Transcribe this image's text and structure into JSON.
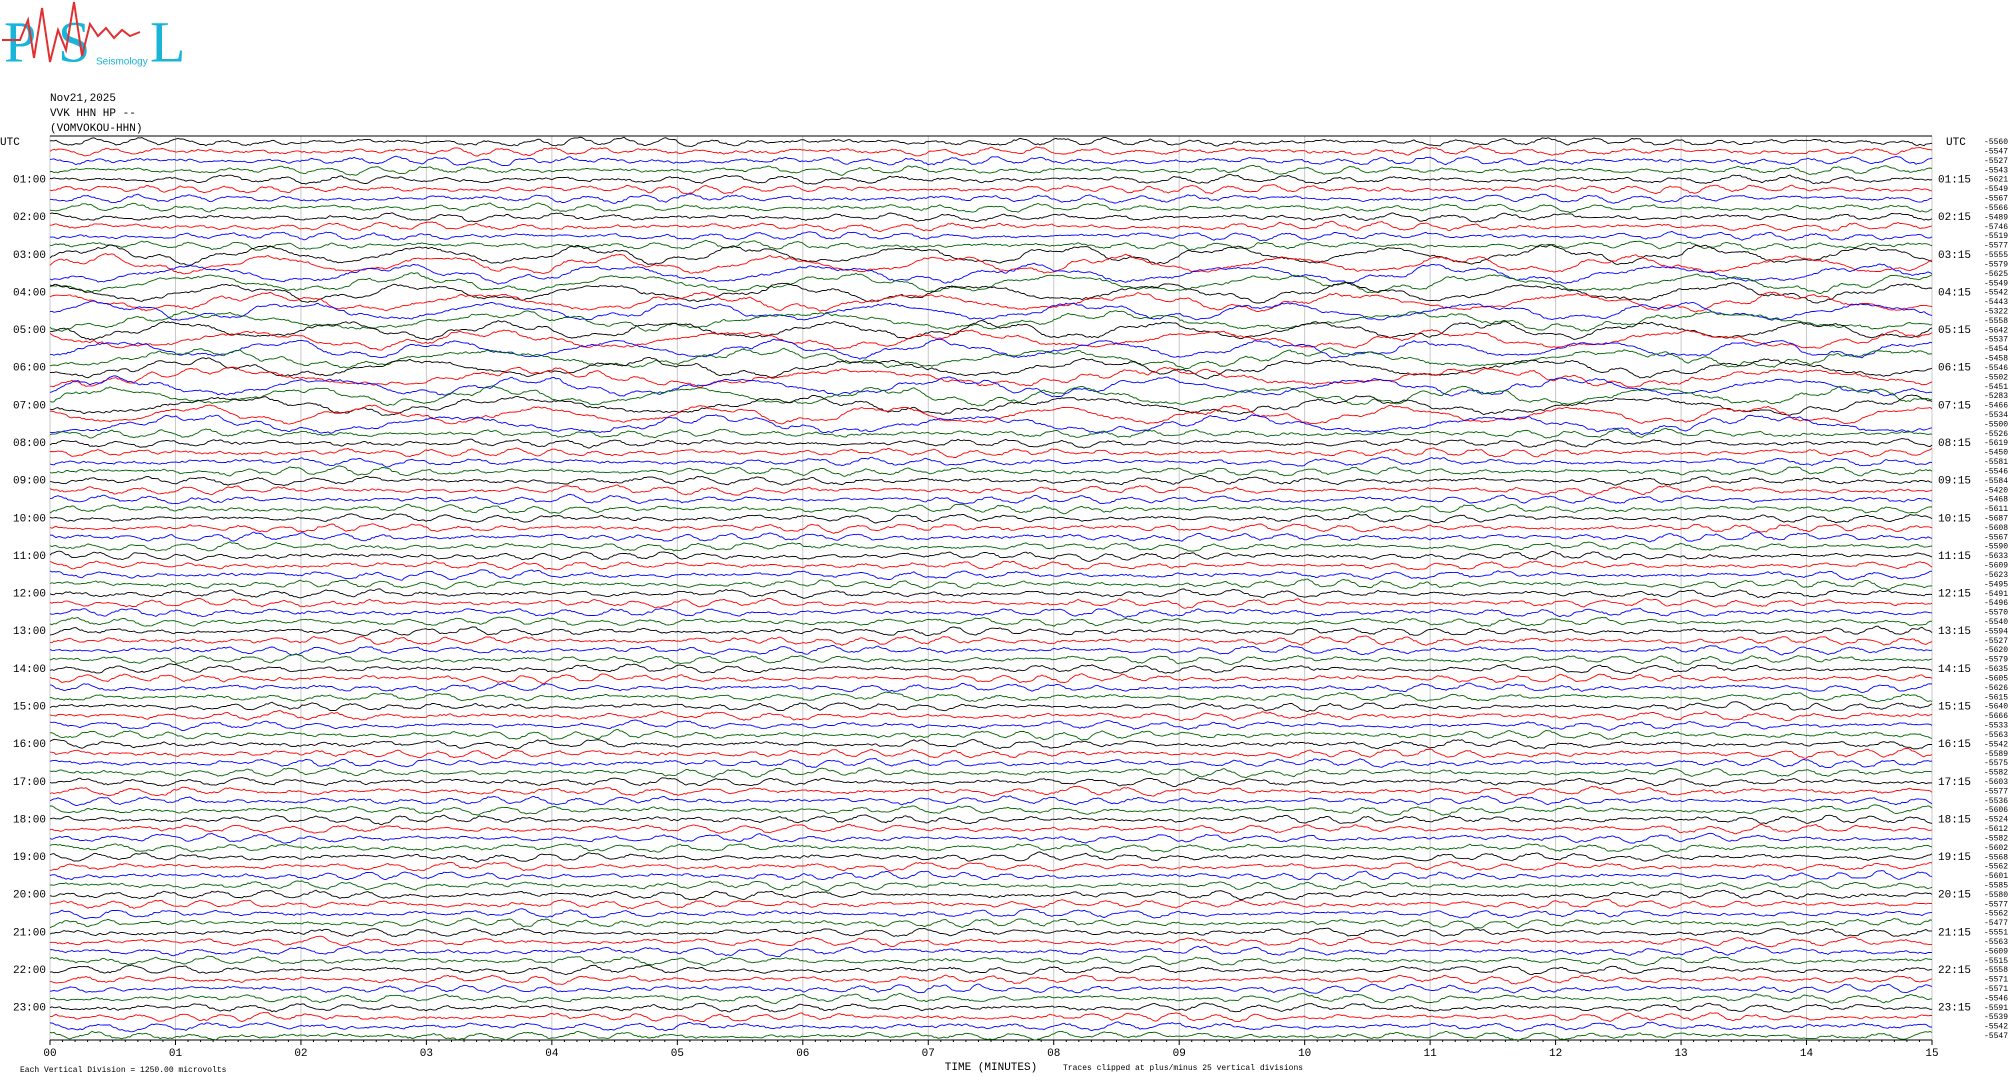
{
  "logo": {
    "letters": [
      "P",
      "S",
      "L"
    ],
    "caption": "Seismology"
  },
  "header": {
    "date": "Nov21,2025",
    "station": "VVK HHN HP --",
    "channel": "(VOMVOKOU-HHN)"
  },
  "plot": {
    "left_label": "UTC",
    "right_label": "UTC",
    "left_times": [
      "01:00",
      "02:00",
      "03:00",
      "04:00",
      "05:00",
      "06:00",
      "07:00",
      "08:00",
      "09:00",
      "10:00",
      "11:00",
      "12:00",
      "13:00",
      "14:00",
      "15:00",
      "16:00",
      "17:00",
      "18:00",
      "19:00",
      "20:00",
      "21:00",
      "22:00",
      "23:00"
    ],
    "right_times": [
      "01:15",
      "02:15",
      "03:15",
      "04:15",
      "05:15",
      "06:15",
      "07:15",
      "08:15",
      "09:15",
      "10:15",
      "11:15",
      "12:15",
      "13:15",
      "14:15",
      "15:15",
      "16:15",
      "17:15",
      "18:15",
      "19:15",
      "20:15",
      "21:15",
      "22:15",
      "23:15"
    ],
    "trace_offsets": [
      "-5560",
      "-5547",
      "-5527",
      "-5543",
      "-5621",
      "-5549",
      "-5567",
      "-5566",
      "-5489",
      "-5746",
      "-5519",
      "-5577",
      "-5555",
      "-5579",
      "-5625",
      "-5549",
      "-5542",
      "-5443",
      "-5322",
      "-5558",
      "-5642",
      "-5537",
      "-5454",
      "-5458",
      "-5546",
      "-5502",
      "-5451",
      "-5283",
      "-5466",
      "-5534",
      "-5500",
      "-5526",
      "-5619",
      "-5450",
      "-5581",
      "-5546",
      "-5584",
      "-5420",
      "-5468",
      "-5611",
      "-5687",
      "-5608",
      "-5567",
      "-5590",
      "-5633",
      "-5609",
      "-5623",
      "-5495",
      "-5491",
      "-5496",
      "-5570",
      "-5540",
      "-5594",
      "-5527",
      "-5620",
      "-5579",
      "-5635",
      "-5605",
      "-5626",
      "-5615",
      "-5640",
      "-5666",
      "-5533",
      "-5563",
      "-5542",
      "-5589",
      "-5575",
      "-5582",
      "-5603",
      "-5577",
      "-5536",
      "-5606",
      "-5524",
      "-5612",
      "-5582",
      "-5602",
      "-5568",
      "-5562",
      "-5601",
      "-5585",
      "-5580",
      "-5577",
      "-5562",
      "-5477",
      "-5551",
      "-5563",
      "-5609",
      "-5515",
      "-5558",
      "-5571",
      "-5571",
      "-5546",
      "-5591",
      "-5539",
      "-5542",
      "-5547"
    ],
    "x_ticks": [
      "00",
      "01",
      "02",
      "03",
      "04",
      "05",
      "06",
      "07",
      "08",
      "09",
      "10",
      "11",
      "12",
      "13",
      "14",
      "15"
    ],
    "x_axis_title": "TIME (MINUTES)",
    "clip_note": "Traces clipped at plus/minus 25 vertical divisions",
    "scale_note": "Each Vertical Division = 1250.00 microvolts"
  }
}
